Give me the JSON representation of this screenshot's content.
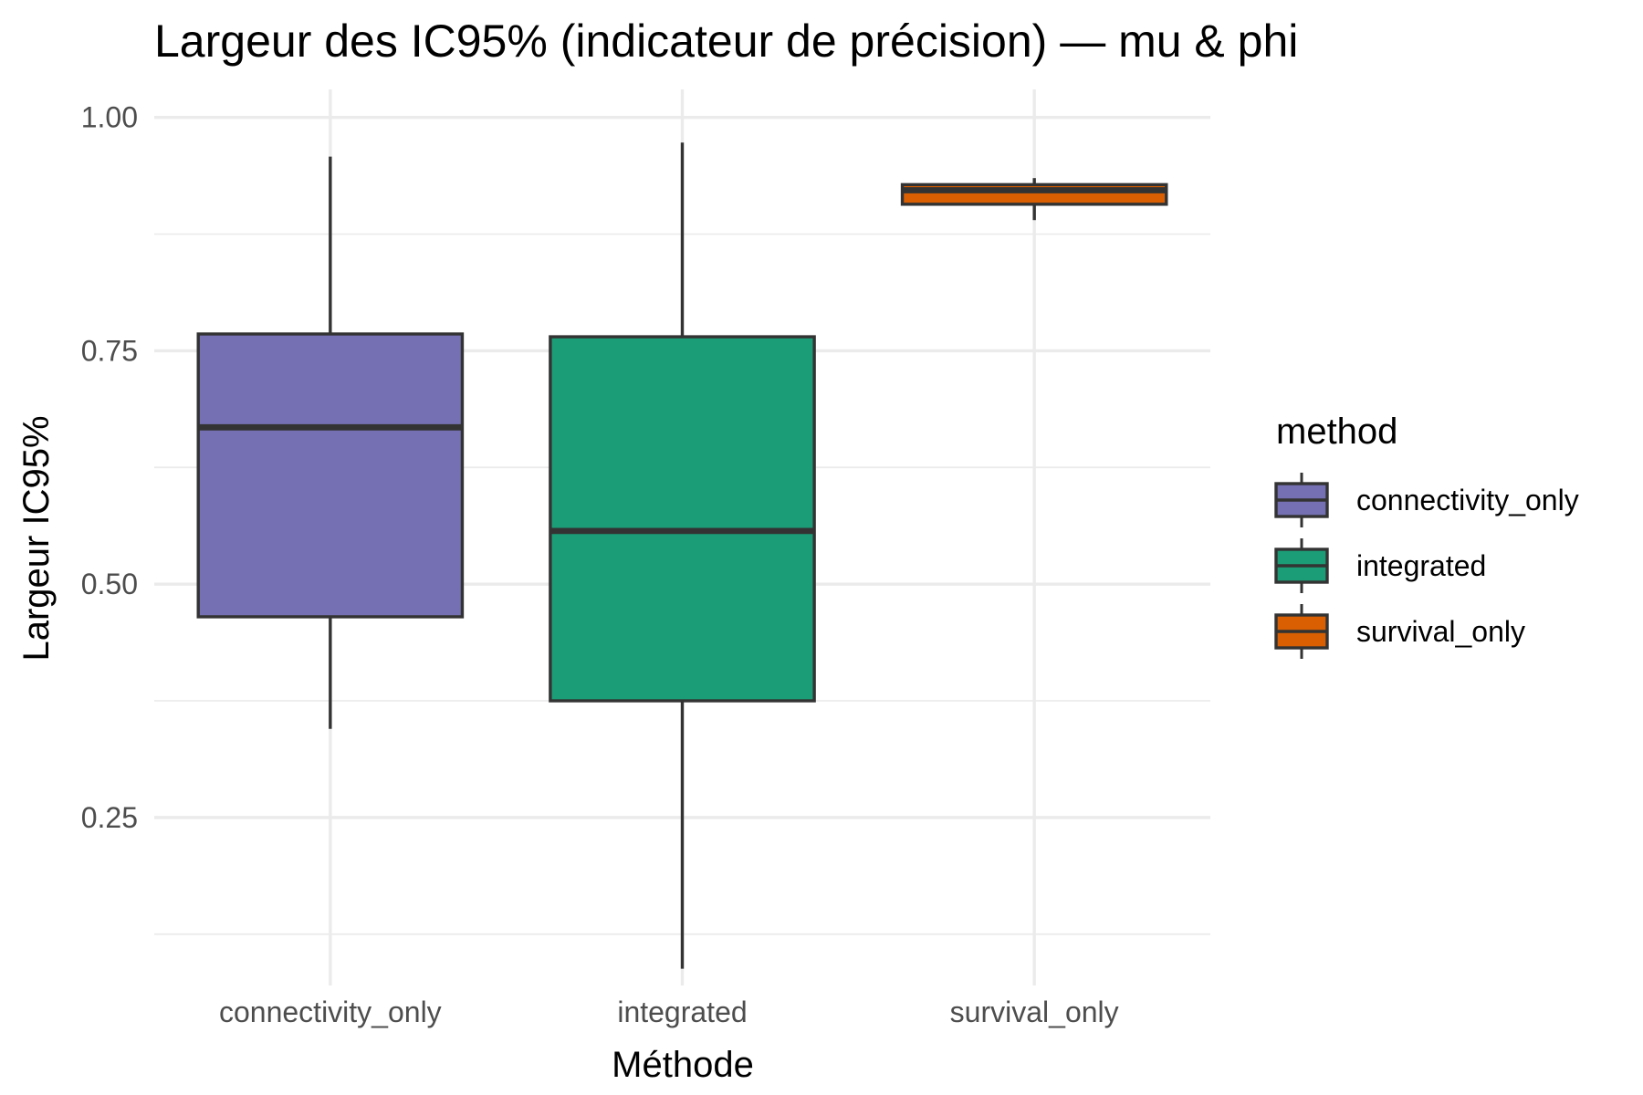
{
  "chart_data": {
    "type": "boxplot",
    "title": "Largeur des IC95% (indicateur de précision) — mu & phi",
    "xlabel": "Méthode",
    "ylabel": "Largeur IC95%",
    "categories": [
      "connectivity_only",
      "integrated",
      "survival_only"
    ],
    "y_ticks": [
      "0.25",
      "0.50",
      "0.75",
      "1.00"
    ],
    "ylim": [
      0.07,
      1.03
    ],
    "grid": true,
    "boxes": [
      {
        "category": "connectivity_only",
        "whisker_low": 0.345,
        "q1": 0.465,
        "median": 0.668,
        "q3": 0.768,
        "whisker_high": 0.958,
        "color": "#7570b3"
      },
      {
        "category": "integrated",
        "whisker_low": 0.088,
        "q1": 0.375,
        "median": 0.557,
        "q3": 0.765,
        "whisker_high": 0.973,
        "color": "#1b9e77"
      },
      {
        "category": "survival_only",
        "whisker_low": 0.89,
        "q1": 0.907,
        "median": 0.922,
        "q3": 0.928,
        "whisker_high": 0.935,
        "color": "#d95f02"
      }
    ],
    "legend": {
      "title": "method",
      "position": "right",
      "entries": [
        {
          "label": "connectivity_only",
          "color": "#7570b3"
        },
        {
          "label": "integrated",
          "color": "#1b9e77"
        },
        {
          "label": "survival_only",
          "color": "#d95f02"
        }
      ]
    },
    "outline_color": "#333333"
  }
}
